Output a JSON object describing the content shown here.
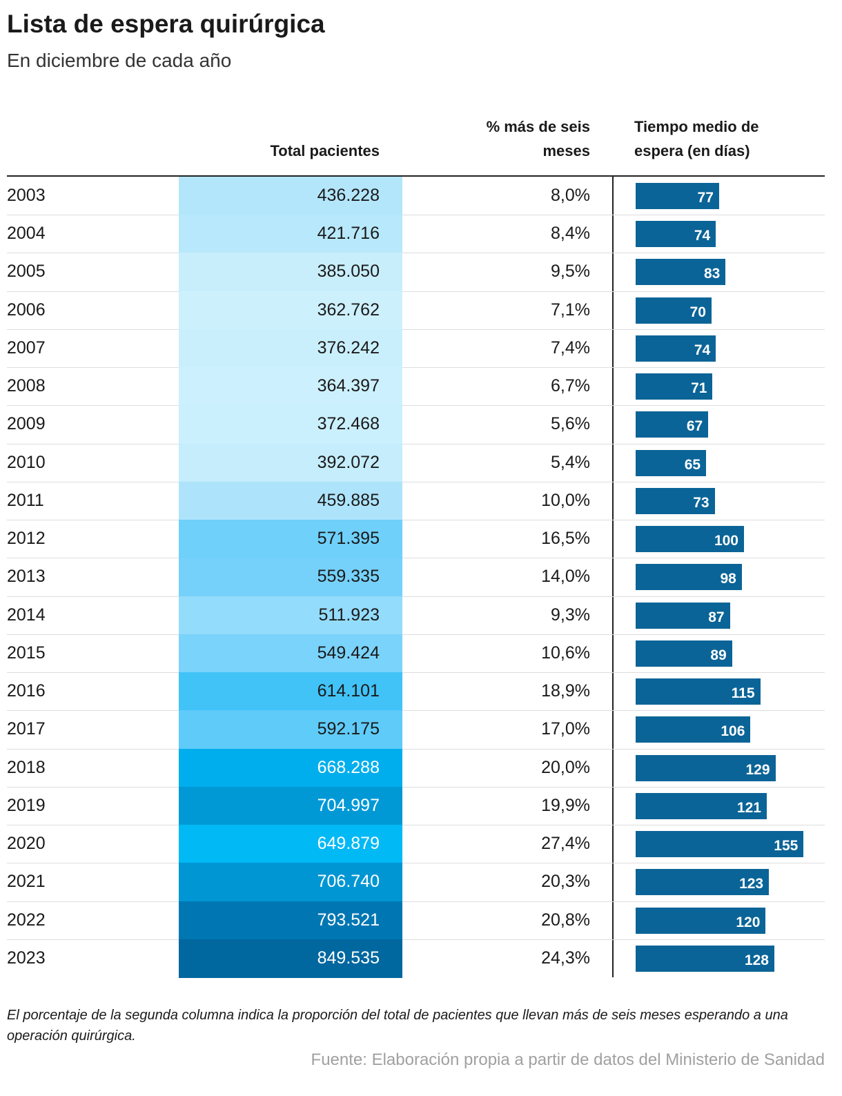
{
  "header": {
    "title": "Lista de espera quirúrgica",
    "subtitle": "En diciembre de cada año"
  },
  "table": {
    "columns": [
      "Total pacientes",
      "% más de seis meses",
      "Tiempo medio de espera (en días)"
    ],
    "bar_color": "#0b6497",
    "cell_colors": [
      "#b3e6fb",
      "#b8e8fb",
      "#c8eefc",
      "#cdf0fd",
      "#caeffc",
      "#ccf0fd",
      "#caeffd",
      "#c5edfc",
      "#aee4fb",
      "#6fd0fa",
      "#75d1fa",
      "#94dcfb",
      "#7ad3fa",
      "#41c3f8",
      "#5fcbf9",
      "#00aeed",
      "#0099d6",
      "#00b9f5",
      "#0096d3",
      "#0077b3",
      "#00679f"
    ],
    "rows": [
      [
        "2003",
        "436.228",
        "8,0%",
        77
      ],
      [
        "2004",
        "421.716",
        "8,4%",
        74
      ],
      [
        "2005",
        "385.050",
        "9,5%",
        83
      ],
      [
        "2006",
        "362.762",
        "7,1%",
        70
      ],
      [
        "2007",
        "376.242",
        "7,4%",
        74
      ],
      [
        "2008",
        "364.397",
        "6,7%",
        71
      ],
      [
        "2009",
        "372.468",
        "5,6%",
        67
      ],
      [
        "2010",
        "392.072",
        "5,4%",
        65
      ],
      [
        "2011",
        "459.885",
        "10,0%",
        73
      ],
      [
        "2012",
        "571.395",
        "16,5%",
        100
      ],
      [
        "2013",
        "559.335",
        "14,0%",
        98
      ],
      [
        "2014",
        "511.923",
        "9,3%",
        87
      ],
      [
        "2015",
        "549.424",
        "10,6%",
        89
      ],
      [
        "2016",
        "614.101",
        "18,9%",
        115
      ],
      [
        "2017",
        "592.175",
        "17,0%",
        106
      ],
      [
        "2018",
        "668.288",
        "20,0%",
        129
      ],
      [
        "2019",
        "704.997",
        "19,9%",
        121
      ],
      [
        "2020",
        "649.879",
        "27,4%",
        155
      ],
      [
        "2021",
        "706.740",
        "20,3%",
        123
      ],
      [
        "2022",
        "793.521",
        "20,8%",
        120
      ],
      [
        "2023",
        "849.535",
        "24,3%",
        128
      ]
    ]
  },
  "footer": {
    "note": "El porcentaje de la segunda columna indica la proporción del total de pacientes que llevan más de seis meses esperando a una operación quirúrgica.",
    "source": "Fuente: Elaboración propia a partir de datos del Ministerio de Sanidad"
  }
}
